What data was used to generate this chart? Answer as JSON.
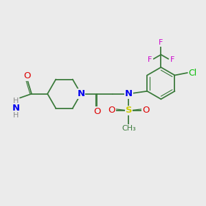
{
  "bg_color": "#ebebeb",
  "bond_color": "#3a7a3a",
  "bond_width": 1.3,
  "atom_colors": {
    "O": "#dd0000",
    "N": "#0000ee",
    "S": "#cccc00",
    "F": "#cc00cc",
    "Cl": "#00bb00",
    "H": "#888888",
    "C": "#3a7a3a"
  },
  "scale": 1.0
}
